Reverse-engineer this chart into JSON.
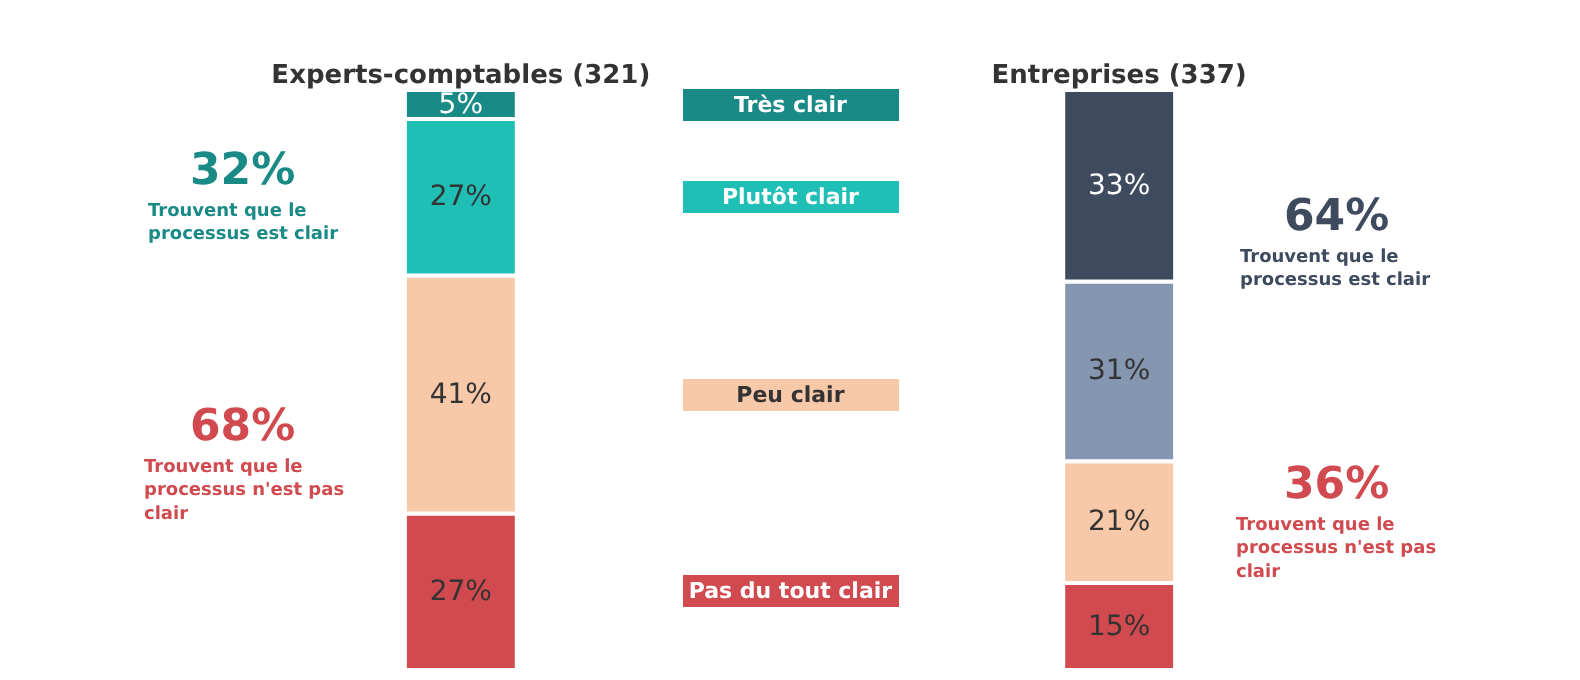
{
  "chart_data": {
    "type": "bar",
    "stacked": true,
    "legend": false,
    "categories": [
      "Experts-comptables (321)",
      "Entreprises (337)"
    ],
    "series": [
      {
        "name": "Pas du tout clair",
        "color": "#d04a4f",
        "colors": [
          "#d04a4f",
          "#d04a4f"
        ],
        "values": [
          27,
          15
        ],
        "value_labels": [
          "27%",
          "15%"
        ]
      },
      {
        "name": "Peu clair",
        "color": "#f8c9a8",
        "colors": [
          "#f8c9a8",
          "#f8c9a8"
        ],
        "values": [
          41,
          21
        ],
        "value_labels": [
          "41%",
          "21%"
        ]
      },
      {
        "name": "Plutôt clair",
        "color": "#1fbfb5",
        "colors": [
          "#1fbfb5",
          "#8597b0"
        ],
        "values": [
          27,
          31
        ],
        "value_labels": [
          "27%",
          "31%"
        ]
      },
      {
        "name": "Très clair",
        "color": "#1a8a86",
        "colors": [
          "#1a8a86",
          "#3e4a5e"
        ],
        "values": [
          5,
          33
        ],
        "value_labels": [
          "5%",
          "33%"
        ]
      }
    ],
    "annotations": [
      "32%",
      "Trouvent que le processus est clair",
      "68%",
      "Trouvent que le processus n'est pas clair",
      "64%",
      "Trouvent que le processus est clair",
      "36%",
      "Trouvent que le processus n'est pas clair"
    ]
  }
}
